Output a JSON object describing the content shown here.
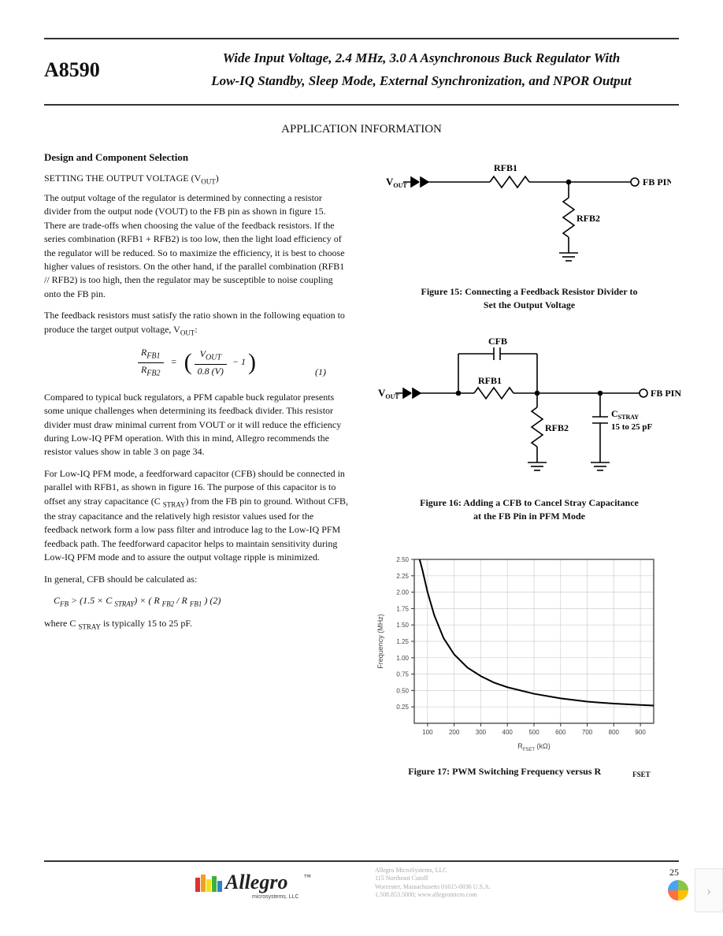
{
  "header": {
    "partno": "A8590",
    "title_l1": "Wide Input Voltage, 2.4 MHz, 3.0 A Asynchronous Buck Regulator With",
    "title_l2": "Low-IQ Standby, Sleep Mode, External Synchronization, and NPOR Output"
  },
  "section_title": "APPLICATION INFORMATION",
  "sub1": "Design and Component Selection",
  "sub2_main": "SETTING THE OUTPUT VOLTAGE (V",
  "sub2_sub": "OUT",
  "sub2_close": ")",
  "p1": "The output voltage of the regulator is determined by connecting a resistor divider from the output node (VOUT) to the FB pin as shown in figure 15. There are trade-offs when choosing the value of the feedback resistors. If the series combination (RFB1 + RFB2) is too low, then the light load efficiency of the regulator will be reduced. So to maximize the efficiency, it is best to choose higher values of resistors. On the other hand, if the parallel combination (RFB1 // RFB2) is too high, then the regulator may be susceptible to noise coupling onto the FB pin.",
  "p2_a": "The feedback resistors must satisfy the ratio shown in the following equation to produce the target output voltage, V",
  "p2_sub": "OUT",
  "p2_b": ":",
  "eq1": {
    "lhs_top": "R",
    "lhs_top_sub": "FB1",
    "lhs_bot": "R",
    "lhs_bot_sub": "FB2",
    "eqs": "=",
    "rhs_top": "V",
    "rhs_top_sub": "OUT",
    "rhs_bot": "0.8 (V)",
    "minus1": "− 1",
    "num": "(1)"
  },
  "p3": "Compared to typical buck regulators, a PFM capable buck regulator presents some unique challenges when determining its feedback divider. This resistor divider must draw minimal current from VOUT or it will reduce the efficiency during Low-IQ PFM operation. With this in mind, Allegro recommends the resistor values show in table 3 on page 34.",
  "p4_a": "For Low-IQ PFM mode, a feedforward capacitor (CFB) should be connected in parallel with RFB1, as shown in figure 16. The purpose of this capacitor is to offset any stray capacitance (C ",
  "p4_sub1": "STRAY",
  "p4_b": ") from the FB pin to ground. Without CFB, the stray capacitance and the relatively high resistor values used for the feedback network form a low pass filter and introduce lag to the Low-IQ PFM feedback path. The feedforward capacitor helps to maintain sensitivity during Low-IQ PFM mode and to assure the output voltage ripple is minimized.",
  "p5": "In general, CFB should be calculated as:",
  "eq2_pre": "C",
  "eq2_sub1": "FB",
  "eq2_mid1": " > (1.5 × C ",
  "eq2_sub2": "STRAY",
  "eq2_mid2": ") × ( R ",
  "eq2_sub3": "FB2",
  "eq2_mid3": " / R ",
  "eq2_sub4": "FB1",
  "eq2_mid4": " ) (2)",
  "p6_a": "where C ",
  "p6_sub": "STRAY",
  "p6_b": " is typically 15 to 25 pF.",
  "fig15": {
    "vout_lab": "V",
    "vout_sub": "OUT",
    "rfb1": "RFB1",
    "rfb2": "RFB2",
    "fbpin": "FB PIN",
    "caption_l1": "Figure 15: Connecting a Feedback Resistor Divider to",
    "caption_l2": "Set the Output Voltage"
  },
  "fig16": {
    "vout_lab": "V",
    "vout_sub": "OUT",
    "cfb": "CFB",
    "rfb1": "RFB1",
    "rfb2": "RFB2",
    "cstray": "C",
    "cstray_sub": "STRAY",
    "cstray_val": "15 to 25 pF",
    "fbpin": "FB PIN",
    "caption_l1": "Figure 16: Adding a CFB to Cancel Stray Capacitance",
    "caption_l2": "at the FB Pin in PFM Mode"
  },
  "fig17": {
    "caption_main": "Figure 17: PWM Switching Frequency versus R",
    "caption_sub": "FSET",
    "ylabel": "Frequency (MHz)",
    "xlabel": "R",
    "xlabel_sub": "FSET",
    "xlabel_unit": " (kΩ)",
    "xlim": [
      50,
      950
    ],
    "ylim": [
      0,
      2.5
    ],
    "xticks": [
      100,
      200,
      300,
      400,
      500,
      600,
      700,
      800,
      900
    ],
    "yticks": [
      0.25,
      0.5,
      0.75,
      1.0,
      1.25,
      1.5,
      1.75,
      2.0,
      2.25,
      2.5
    ],
    "curve": [
      [
        70,
        2.5
      ],
      [
        80,
        2.35
      ],
      [
        100,
        2.0
      ],
      [
        125,
        1.65
      ],
      [
        160,
        1.3
      ],
      [
        200,
        1.05
      ],
      [
        250,
        0.85
      ],
      [
        300,
        0.72
      ],
      [
        350,
        0.62
      ],
      [
        400,
        0.55
      ],
      [
        500,
        0.45
      ],
      [
        600,
        0.38
      ],
      [
        700,
        0.33
      ],
      [
        800,
        0.3
      ],
      [
        900,
        0.28
      ],
      [
        950,
        0.27
      ]
    ],
    "axis_color": "#333333",
    "grid_color": "#cfcfcf",
    "line_color": "#000000",
    "label_fontsize": 8
  },
  "footer": {
    "addr_l1": "Allegro MicroSystems, LLC",
    "addr_l2": "115 Northeast Cutoff",
    "addr_l3": "Worcester, Massachusetts 01615-0036 U.S.A.",
    "addr_l4": "1.508.853.5000; www.allegromicro.com",
    "logo_main": "Allegro",
    "logo_sub": "microsystems, LLC",
    "page": "25"
  },
  "next_arrow": "›"
}
